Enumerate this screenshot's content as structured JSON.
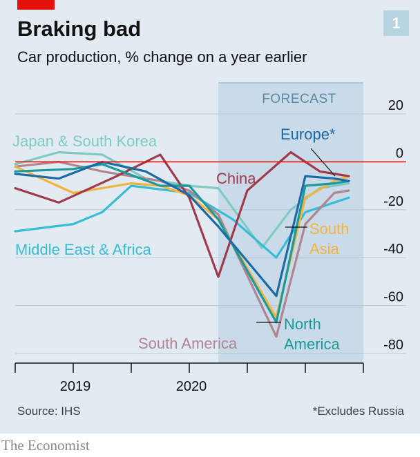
{
  "header": {
    "title": "Braking bad",
    "subtitle": "Car production, % change on a year earlier",
    "chart_number": "1"
  },
  "footer": {
    "source": "Source: IHS",
    "footnote": "*Excludes Russia",
    "brand": "The Economist"
  },
  "colors": {
    "background": "#e3ebf2",
    "forecast_shade": "#c9dbe8",
    "zero_line": "#e3120b",
    "China": "#a2394a",
    "Europe*": "#1b6aa5",
    "Japan & South Korea": "#7fcbc4",
    "Middle East & Africa": "#37bcd6",
    "South Asia": "#f4b33e",
    "North America": "#1a9a9a",
    "South America": "#b08591"
  },
  "chart_data": {
    "type": "line",
    "forecast_label": "FORECAST",
    "forecast_range": [
      7,
      12
    ],
    "x": [
      0,
      1,
      2,
      3,
      4,
      5,
      6,
      7,
      8,
      9,
      10,
      11,
      12
    ],
    "x_ticks": [
      0,
      2,
      4,
      6,
      8,
      10,
      12
    ],
    "x_labels": [
      {
        "text": "2019",
        "at": 2
      },
      {
        "text": "2020",
        "at": 6
      }
    ],
    "ylim": [
      -80,
      20
    ],
    "yticks": [
      20,
      0,
      -20,
      -40,
      -60,
      -80
    ],
    "ytick_labels": [
      "20",
      "0",
      "-20",
      "-40",
      "-60",
      "-80"
    ],
    "grid": true,
    "series": [
      {
        "name": "Japan & South Korea",
        "x": [
          0,
          1.5,
          3,
          4.5,
          6,
          7,
          8.5,
          9.5,
          10.5,
          11.5
        ],
        "values": [
          -1,
          4,
          3,
          -7,
          -10,
          -11,
          -36,
          -20,
          -11,
          -9
        ]
      },
      {
        "name": "Middle East & Africa",
        "x": [
          0,
          2,
          3,
          4,
          6,
          7.5,
          9,
          10,
          11.5
        ],
        "values": [
          -29,
          -26,
          -21,
          -10,
          -13,
          -24,
          -40,
          -21,
          -15
        ]
      },
      {
        "name": "South America",
        "x": [
          0,
          1.5,
          3,
          5,
          6,
          7,
          9,
          10,
          11,
          11.5
        ],
        "values": [
          -2,
          0,
          -4,
          -8,
          -12,
          -22,
          -73,
          -26,
          -13,
          -12
        ]
      },
      {
        "name": "South Asia",
        "x": [
          0,
          2,
          4,
          5,
          6,
          7,
          9,
          10,
          11,
          11.5
        ],
        "values": [
          -2,
          -13,
          -9,
          -10,
          -14,
          -24,
          -65,
          -15,
          -8,
          -6
        ]
      },
      {
        "name": "China",
        "x": [
          0,
          1.5,
          3.5,
          5,
          6,
          7,
          8,
          9.5,
          10.5,
          11.5
        ],
        "values": [
          -11,
          -17,
          -6,
          3,
          -15,
          -48,
          -12,
          4,
          -4,
          -6
        ]
      },
      {
        "name": "North America",
        "x": [
          0,
          2,
          3,
          5,
          6,
          7,
          9,
          10,
          11,
          11.5
        ],
        "values": [
          -4,
          -3,
          -1,
          -10,
          -10,
          -24,
          -67,
          -10,
          -9,
          -8
        ]
      },
      {
        "name": "Europe*",
        "x": [
          0,
          1.5,
          3,
          4.5,
          6,
          7,
          9,
          10,
          11,
          11.5
        ],
        "values": [
          -5,
          -7,
          0,
          -4,
          -14,
          -27,
          -56,
          -6,
          -7,
          -8
        ]
      }
    ],
    "annotations": [
      {
        "text": "Japan & South Korea",
        "series": "Japan & South Korea"
      },
      {
        "text": "Europe*",
        "series": "Europe*"
      },
      {
        "text": "China",
        "series": "China"
      },
      {
        "text": "Middle East & Africa",
        "series": "Middle East & Africa"
      },
      {
        "text": "South",
        "series": "South Asia"
      },
      {
        "text": "Asia",
        "series": "South Asia"
      },
      {
        "text": "North",
        "series": "North America"
      },
      {
        "text": "America",
        "series": "North America"
      },
      {
        "text": "South America",
        "series": "South America"
      }
    ]
  }
}
